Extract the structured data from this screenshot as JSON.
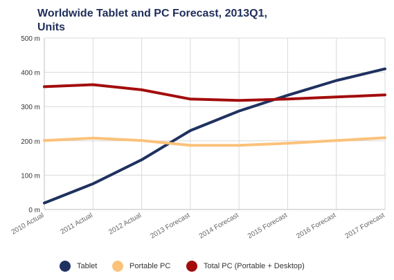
{
  "chart_data": {
    "type": "line",
    "title": "Worldwide Tablet and PC Forecast, 2013Q1, Units",
    "title_lines": [
      "Worldwide Tablet and PC Forecast, 2013Q1,",
      "Units"
    ],
    "categories": [
      "2010 Actual",
      "2011 Actual",
      "2012 Actual",
      "2013 Forecast",
      "2014 Forecast",
      "2015 Forecast",
      "2016 Forecast",
      "2017 Forecast"
    ],
    "yticks": [
      "0 m",
      "100 m",
      "200 m",
      "300 m",
      "400 m",
      "500 m"
    ],
    "ylim": [
      0,
      500
    ],
    "grid": true,
    "legend_position": "bottom",
    "series": [
      {
        "name": "Tablet",
        "color": "#1f3160",
        "values": [
          19,
          75,
          145,
          230,
          287,
          333,
          376,
          410
        ]
      },
      {
        "name": "Portable PC",
        "color": "#fbc27a",
        "values": [
          201,
          208,
          201,
          187,
          187,
          193,
          201,
          209
        ]
      },
      {
        "name": "Total PC (Portable + Desktop)",
        "color": "#a30c0c",
        "values": [
          358,
          364,
          349,
          322,
          318,
          322,
          328,
          334
        ]
      }
    ]
  }
}
